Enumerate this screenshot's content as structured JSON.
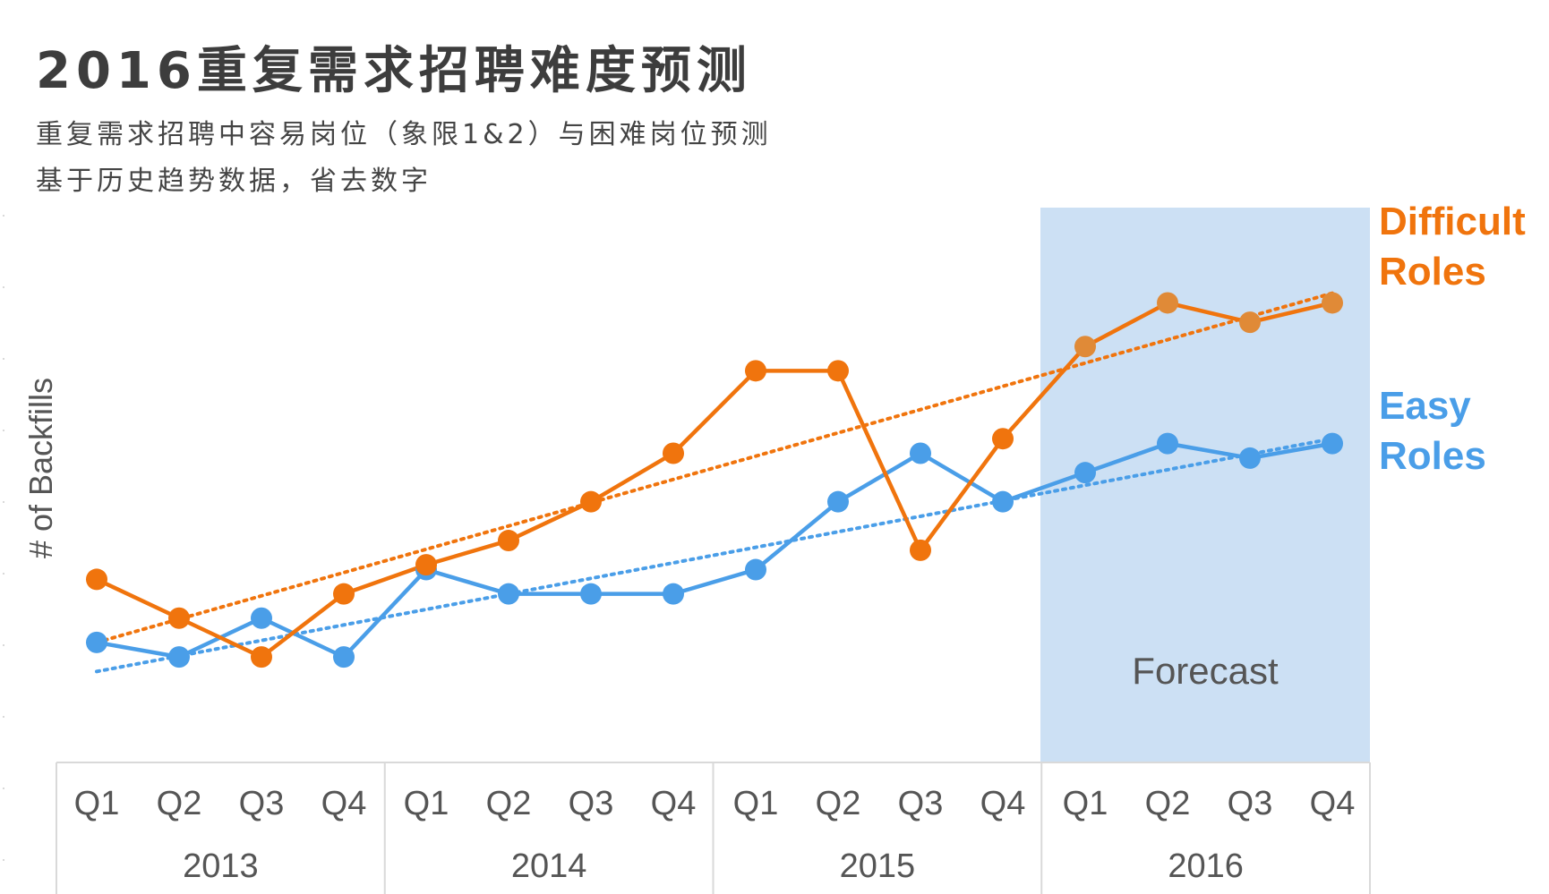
{
  "title": "2016重复需求招聘难度预测",
  "subtitle_lines": [
    "重复需求招聘中容易岗位（象限1&2）与困难岗位预测",
    "基于历史趋势数据，省去数字"
  ],
  "colors": {
    "difficult": "#f0740d",
    "difficult_forecast": "#e08a37",
    "easy": "#4a9ee8",
    "forecast_band": "#cce0f4",
    "grid": "#d9d9d9"
  },
  "chart_data": {
    "type": "line",
    "title": "2016重复需求招聘难度预测",
    "xlabel": "",
    "ylabel": "# of Backfills",
    "y_ticks_labeled": false,
    "ylim": [
      0,
      10
    ],
    "categories": [
      "2013 Q1",
      "2013 Q2",
      "2013 Q3",
      "2013 Q4",
      "2014 Q1",
      "2014 Q2",
      "2014 Q3",
      "2014 Q4",
      "2015 Q1",
      "2015 Q2",
      "2015 Q3",
      "2015 Q4",
      "2016 Q1",
      "2016 Q2",
      "2016 Q3",
      "2016 Q4"
    ],
    "quarter_labels": [
      "Q1",
      "Q2",
      "Q3",
      "Q4",
      "Q1",
      "Q2",
      "Q3",
      "Q4",
      "Q1",
      "Q2",
      "Q3",
      "Q4",
      "Q1",
      "Q2",
      "Q3",
      "Q4"
    ],
    "year_labels": [
      "2013",
      "2014",
      "2015",
      "2016"
    ],
    "forecast_label": "Forecast",
    "forecast_start_index": 12,
    "series": [
      {
        "name": "Difficult Roles",
        "legend_lines": [
          "Difficult",
          "Roles"
        ],
        "values": [
          3.0,
          2.2,
          1.4,
          2.7,
          3.3,
          3.8,
          4.6,
          5.6,
          7.3,
          7.3,
          3.6,
          5.9,
          7.8,
          8.7,
          8.3,
          8.7
        ],
        "trend": [
          1.7,
          8.9
        ]
      },
      {
        "name": "Easy Roles",
        "legend_lines": [
          "Easy",
          "Roles"
        ],
        "values": [
          1.7,
          1.4,
          2.2,
          1.4,
          3.2,
          2.7,
          2.7,
          2.7,
          3.2,
          4.6,
          5.6,
          4.6,
          5.2,
          5.8,
          5.5,
          5.8
        ],
        "trend": [
          1.1,
          5.9
        ]
      }
    ]
  }
}
